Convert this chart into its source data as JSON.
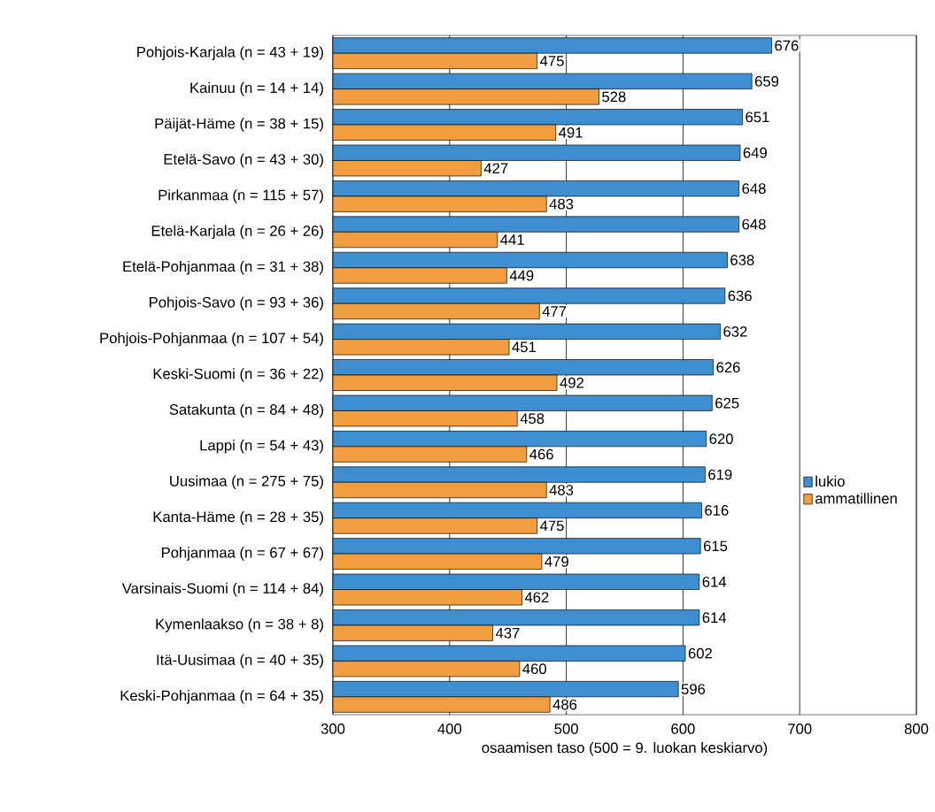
{
  "chart_data": {
    "type": "bar",
    "orientation": "horizontal",
    "xlabel": "osaamisen taso (500 = 9. luokan keskiarvo)",
    "categories": [
      "Pohjois-Karjala (n = 43 + 19)",
      "Kainuu (n = 14 + 14)",
      "Päijät-Häme (n = 38 + 15)",
      "Etelä-Savo (n = 43 + 30)",
      "Pirkanmaa (n = 115 + 57)",
      "Etelä-Karjala (n = 26 + 26)",
      "Etelä-Pohjanmaa (n = 31 + 38)",
      "Pohjois-Savo  (n = 93 + 36)",
      "Pohjois-Pohjanmaa (n = 107 + 54)",
      "Keski-Suomi (n = 36 + 22)",
      "Satakunta (n = 84 + 48)",
      "Lappi (n = 54 + 43)",
      "Uusimaa (n = 275 + 75)",
      "Kanta-Häme (n = 28 + 35)",
      "Pohjanmaa (n = 67 + 67)",
      "Varsinais-Suomi (n = 114 + 84)",
      "Kymenlaakso (n = 38 + 8)",
      "Itä-Uusimaa (n = 40 + 35)",
      "Keski-Pohjanmaa (n = 64 + 35)"
    ],
    "series": [
      {
        "name": "lukio",
        "color": "#3d8fd1",
        "values": [
          676,
          659,
          651,
          649,
          648,
          648,
          638,
          636,
          632,
          626,
          625,
          620,
          619,
          616,
          615,
          614,
          614,
          602,
          596
        ]
      },
      {
        "name": "ammatillinen",
        "color": "#f29d3f",
        "values": [
          475,
          528,
          491,
          427,
          483,
          441,
          449,
          477,
          451,
          492,
          458,
          466,
          483,
          475,
          479,
          462,
          437,
          460,
          486
        ]
      }
    ],
    "xlim": [
      300,
      800
    ],
    "xticks": [
      300,
      400,
      500,
      600,
      700,
      800
    ],
    "grid": "x",
    "legend": "right",
    "data_labels": true
  }
}
